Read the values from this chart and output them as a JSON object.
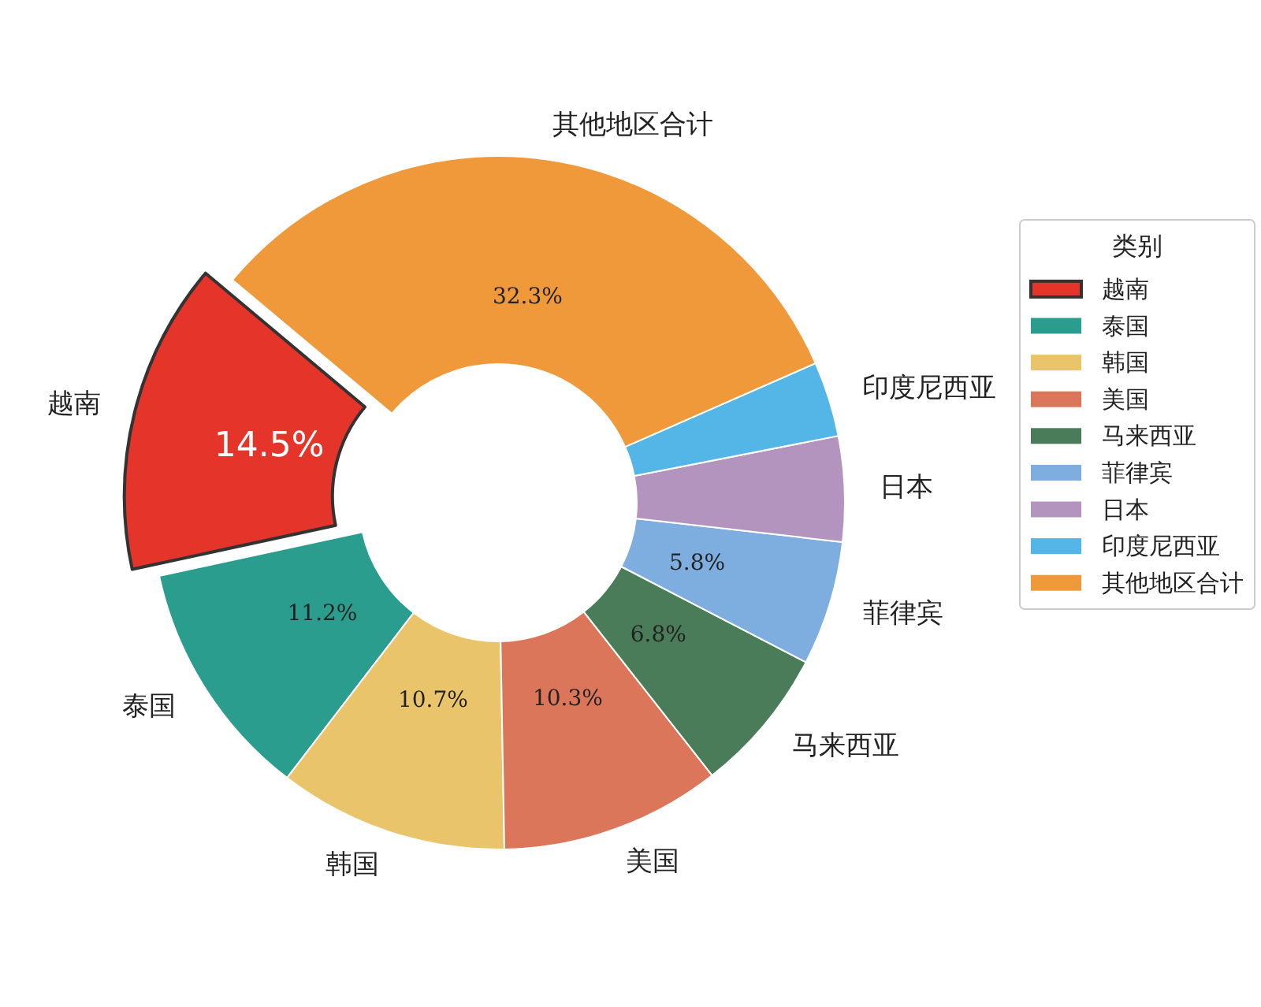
{
  "chart_data": {
    "type": "donut",
    "categories": [
      "越南",
      "泰国",
      "韩国",
      "美国",
      "马来西亚",
      "菲律宾",
      "日本",
      "印度尼西亚",
      "其他地区合计"
    ],
    "values": [
      14.5,
      11.2,
      10.7,
      10.3,
      6.8,
      5.8,
      4.9,
      3.5,
      32.3
    ],
    "colors": [
      "#e5352b",
      "#2a9d8f",
      "#e9c46a",
      "#dc765a",
      "#4a7c59",
      "#7eaee0",
      "#b294be",
      "#54b6e6",
      "#f0993b"
    ],
    "value_labels": [
      "14.5%",
      "11.2%",
      "10.7%",
      "10.3%",
      "6.8%",
      "5.8%",
      null,
      null,
      "32.3%"
    ],
    "legend_title": "类别",
    "legend": "right"
  }
}
